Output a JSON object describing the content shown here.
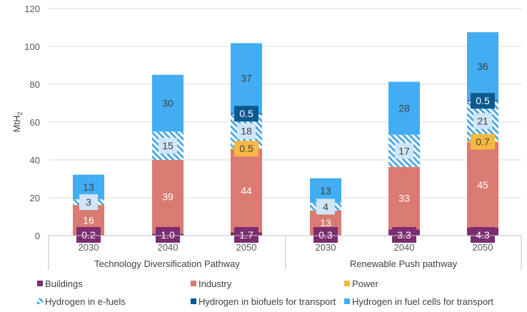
{
  "chart_data": {
    "type": "bar",
    "stacked": true,
    "ylabel": "MtH2",
    "ylabel_main": "MtH",
    "ylabel_sub": "2",
    "ylim": [
      0,
      120
    ],
    "yticks": [
      "0",
      "20",
      "40",
      "60",
      "80",
      "100",
      "120"
    ],
    "groups": [
      {
        "label": "Technology Diversification Pathway",
        "categories": [
          "2030",
          "2040",
          "2050"
        ]
      },
      {
        "label": "Renewable Push pathway",
        "categories": [
          "2030",
          "2040",
          "2050"
        ]
      }
    ],
    "categories": [
      "2030",
      "2040",
      "2050",
      "2030",
      "2040",
      "2050"
    ],
    "series": [
      {
        "name": "Buildings",
        "color": "#7b2d6f",
        "pattern": "solid",
        "label_color": "#ffffff",
        "values": [
          0.2,
          1.0,
          1.7,
          0.3,
          3.3,
          4.3
        ],
        "labels": [
          "0.2",
          "1.0",
          "1.7",
          "0.3",
          "3.3",
          "4.3"
        ]
      },
      {
        "name": "Industry",
        "color": "#d97b72",
        "pattern": "solid",
        "label_color": "#ffffff",
        "values": [
          16,
          39,
          44,
          13,
          33,
          45
        ],
        "labels": [
          "16",
          "39",
          "44",
          "13",
          "33",
          "45"
        ]
      },
      {
        "name": "Power",
        "color": "#f5b942",
        "pattern": "solid",
        "label_color": "#404040",
        "values": [
          0,
          0,
          0.5,
          0,
          0,
          0.7
        ],
        "labels": [
          "",
          "",
          "0.5",
          "",
          "",
          "0.7"
        ]
      },
      {
        "name": "Hydrogen in e-fuels",
        "color": "#4ea9e8",
        "pattern": "hatch",
        "label_color": "#404040",
        "values": [
          3,
          15,
          18,
          4,
          17,
          21
        ],
        "labels": [
          "3",
          "15",
          "18",
          "4",
          "17",
          "21"
        ]
      },
      {
        "name": "Hydrogen in biofuels for transport",
        "color": "#0b5a8f",
        "pattern": "solid",
        "label_color": "#ffffff",
        "values": [
          0,
          0,
          0.5,
          0,
          0,
          0.5
        ],
        "labels": [
          "",
          "",
          "0.5",
          "",
          "",
          "0.5"
        ]
      },
      {
        "name": "Hydrogen in fuel cells for transport",
        "color": "#42adf2",
        "pattern": "solid",
        "label_color": "#404040",
        "values": [
          13,
          30,
          37,
          13,
          28,
          36
        ],
        "labels": [
          "13",
          "30",
          "37",
          "13",
          "28",
          "36"
        ]
      }
    ],
    "legend": {
      "position": "bottom",
      "columns": 3
    },
    "grid": {
      "horizontal": true,
      "vertical": false
    }
  }
}
